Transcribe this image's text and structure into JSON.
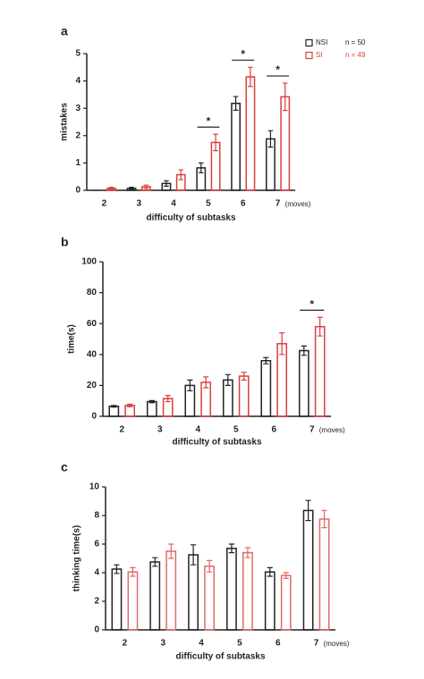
{
  "chart_data": [
    {
      "type": "bar",
      "panel_label": "a",
      "ylabel": "mistakes",
      "xlabel": "difficulty of subtasks",
      "x_note": "(moves)",
      "categories": [
        "2",
        "3",
        "4",
        "5",
        "6",
        "7"
      ],
      "series": [
        {
          "name": "NSI",
          "n_label": "n = 50",
          "color": "#222222",
          "values": [
            0,
            0.07,
            0.25,
            0.82,
            3.18,
            1.88
          ],
          "errors": [
            0,
            0.04,
            0.1,
            0.18,
            0.25,
            0.3
          ]
        },
        {
          "name": "SI",
          "n_label": "n = 49",
          "color": "#d9403a",
          "values": [
            0.07,
            0.13,
            0.57,
            1.75,
            4.15,
            3.42
          ],
          "errors": [
            0.04,
            0.06,
            0.18,
            0.3,
            0.35,
            0.5
          ]
        }
      ],
      "ylim": [
        0,
        5
      ],
      "yticks": [
        0,
        1,
        2,
        3,
        4,
        5
      ],
      "legend": "upper right",
      "significance": [
        {
          "category": "5",
          "label": "*"
        },
        {
          "category": "6",
          "label": "*"
        },
        {
          "category": "7",
          "label": "*"
        }
      ]
    },
    {
      "type": "bar",
      "panel_label": "b",
      "ylabel": "time(s)",
      "xlabel": "difficulty of subtasks",
      "x_note": "(moves)",
      "categories": [
        "2",
        "3",
        "4",
        "5",
        "6",
        "7"
      ],
      "series": [
        {
          "color": "#222222",
          "values": [
            6.5,
            9.5,
            20,
            23.5,
            36,
            42.5
          ],
          "errors": [
            0.5,
            0.7,
            3.5,
            3.5,
            2,
            3
          ]
        },
        {
          "color": "#d9403a",
          "values": [
            7,
            11.5,
            22,
            26,
            47,
            58
          ],
          "errors": [
            0.8,
            2,
            3.5,
            2.5,
            7,
            6
          ]
        }
      ],
      "ylim": [
        0,
        100
      ],
      "yticks": [
        0,
        20,
        40,
        60,
        80,
        100
      ],
      "significance": [
        {
          "category": "7",
          "label": "*"
        }
      ]
    },
    {
      "type": "bar",
      "panel_label": "c",
      "ylabel": "thinking time(s)",
      "xlabel": "difficulty of subtasks",
      "x_note": "(moves)",
      "categories": [
        "2",
        "3",
        "4",
        "5",
        "6",
        "7"
      ],
      "series": [
        {
          "color": "#222222",
          "values": [
            4.25,
            4.75,
            5.25,
            5.7,
            4.05,
            8.35
          ],
          "errors": [
            0.3,
            0.3,
            0.7,
            0.3,
            0.3,
            0.7
          ]
        },
        {
          "color": "#e06a66",
          "values": [
            4.05,
            5.5,
            4.45,
            5.4,
            3.8,
            7.75
          ],
          "errors": [
            0.3,
            0.5,
            0.4,
            0.35,
            0.2,
            0.6
          ]
        }
      ],
      "ylim": [
        0,
        10
      ],
      "yticks": [
        0,
        2,
        4,
        6,
        8,
        10
      ]
    }
  ]
}
